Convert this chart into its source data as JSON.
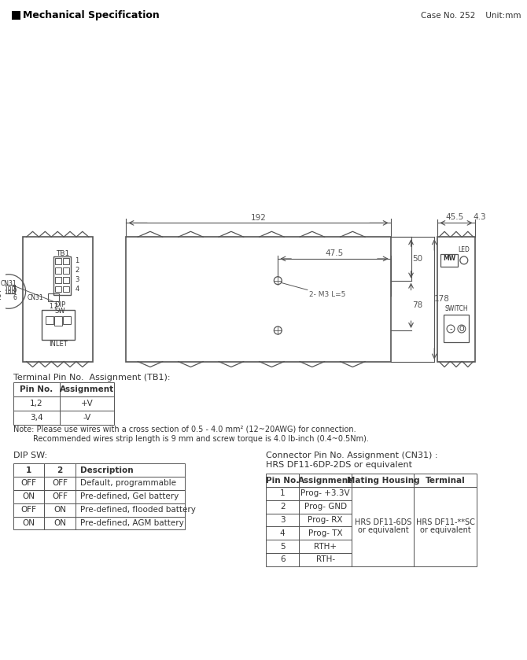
{
  "title": "Mechanical Specification",
  "case_info": "Case No. 252    Unit:mm",
  "bg_color": "#ffffff",
  "line_color": "#555555",
  "text_color": "#333333",
  "dim_color": "#555555",
  "dim192": "192",
  "dim47_5": "47.5",
  "dim50": "50",
  "dim78": "78",
  "dim178": "178",
  "dim45_5": "45.5",
  "dim4_3": "4.3",
  "dim2_M3": "2- M3 L=5",
  "terminal_title": "Terminal Pin No.  Assignment (TB1):",
  "tb1_headers": [
    "Pin No.",
    "Assignment"
  ],
  "tb1_rows": [
    [
      "1,2",
      "+V"
    ],
    [
      "3,4",
      "-V"
    ]
  ],
  "note_line1": "Note: Please use wires with a cross section of 0.5 - 4.0 mm² (12~20AWG) for connection.",
  "note_line2": "        Recommended wires strip length is 9 mm and screw torque is 4.0 lb-inch (0.4~0.5Nm).",
  "dip_title": "DIP SW:",
  "dip_headers": [
    "1",
    "2",
    "Description"
  ],
  "dip_rows": [
    [
      "OFF",
      "OFF",
      "Default, programmable"
    ],
    [
      "ON",
      "OFF",
      "Pre-defined, Gel battery"
    ],
    [
      "OFF",
      "ON",
      "Pre-defined, flooded battery"
    ],
    [
      "ON",
      "ON",
      "Pre-defined, AGM battery"
    ]
  ],
  "connector_title1": "Connector Pin No. Assignment (CN31) :",
  "connector_title2": "HRS DF11-6DP-2DS or equivalent",
  "cn31_headers": [
    "Pin No.",
    "Assignment",
    "Mating Housing",
    "Terminal"
  ],
  "cn31_rows": [
    [
      "1",
      "Prog- +3.3V",
      "",
      ""
    ],
    [
      "2",
      "Prog- GND",
      "",
      ""
    ],
    [
      "3",
      "Prog- RX",
      "HRS DF11-6DS",
      "HRS DF11-**SC"
    ],
    [
      "4",
      "Prog- TX",
      "or equivalent",
      "or equivalent"
    ],
    [
      "5",
      "RTH+",
      "",
      ""
    ],
    [
      "6",
      "RTH-",
      "",
      ""
    ]
  ]
}
